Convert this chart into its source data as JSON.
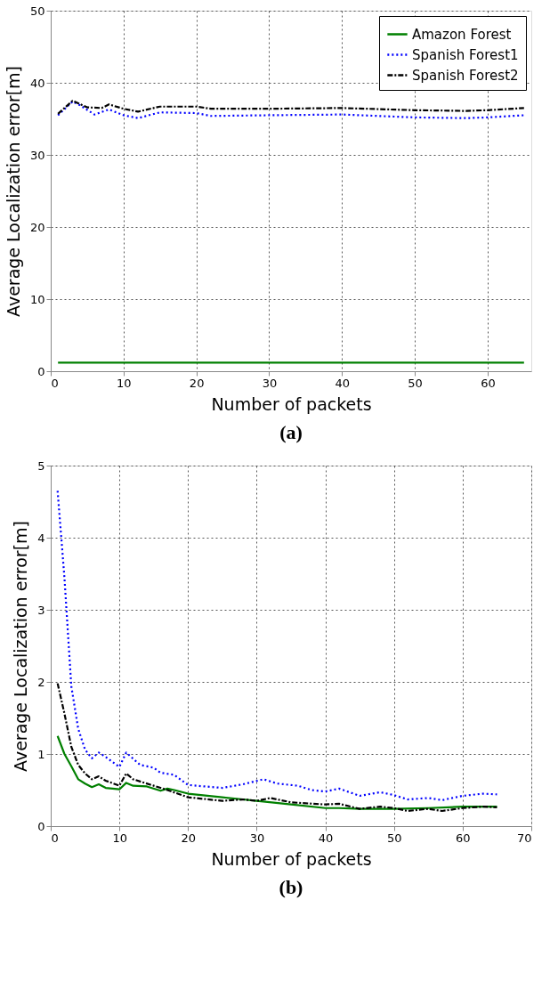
{
  "chart_data": [
    {
      "type": "line",
      "xlabel": "Number of packets",
      "ylabel": "Average Localization error[m]",
      "annotations": [
        "(a)"
      ],
      "xlim": [
        0,
        66
      ],
      "xticks": [
        0,
        10,
        20,
        30,
        40,
        50,
        60
      ],
      "ylim": [
        0,
        50
      ],
      "yticks": [
        0,
        10,
        20,
        30,
        40,
        50
      ],
      "grid": true,
      "legend": "top right",
      "marker": "none",
      "series": [
        {
          "name": "Amazon Forest",
          "color": "#008000",
          "line_style": "solid",
          "x": [
            1,
            10,
            20,
            30,
            40,
            50,
            60,
            65
          ],
          "values": [
            1.2,
            1.2,
            1.2,
            1.2,
            1.2,
            1.2,
            1.2,
            1.2
          ]
        },
        {
          "name": "Spanish Forest1",
          "color": "#0000ff",
          "line_style": "dotted",
          "x": [
            1,
            3,
            4,
            6,
            8,
            10,
            12,
            15,
            20,
            22,
            30,
            40,
            50,
            57,
            60,
            65
          ],
          "values": [
            35.5,
            37.4,
            36.9,
            35.6,
            36.3,
            35.5,
            35.1,
            35.9,
            35.8,
            35.4,
            35.5,
            35.6,
            35.2,
            35.1,
            35.2,
            35.5
          ]
        },
        {
          "name": "Spanish Forest2",
          "color": "#000000",
          "line_style": "dashdot",
          "x": [
            1,
            3,
            5,
            7,
            8,
            10,
            12,
            15,
            20,
            22,
            30,
            40,
            50,
            57,
            60,
            65
          ],
          "values": [
            35.7,
            37.5,
            36.6,
            36.5,
            37.0,
            36.4,
            36.0,
            36.7,
            36.7,
            36.4,
            36.4,
            36.5,
            36.2,
            36.1,
            36.2,
            36.5
          ]
        }
      ]
    },
    {
      "type": "line",
      "xlabel": "Number of packets",
      "ylabel": "Average Localization error[m]",
      "annotations": [
        "(b)"
      ],
      "xlim": [
        0,
        70
      ],
      "xticks": [
        0,
        10,
        20,
        30,
        40,
        50,
        60,
        70
      ],
      "ylim": [
        0,
        5
      ],
      "yticks": [
        0,
        1,
        2,
        3,
        4,
        5
      ],
      "grid": true,
      "legend": "top right",
      "marker": "none",
      "series": [
        {
          "name": "Amazon Forest",
          "color": "#008000",
          "line_style": "solid",
          "x": [
            1,
            2,
            3,
            4,
            5,
            6,
            7,
            8,
            9,
            10,
            11,
            12,
            14,
            16,
            17,
            18,
            20,
            25,
            28,
            30,
            35,
            40,
            42,
            45,
            50,
            55,
            60,
            65
          ],
          "values": [
            1.25,
            1.0,
            0.83,
            0.65,
            0.59,
            0.54,
            0.58,
            0.53,
            0.52,
            0.51,
            0.6,
            0.56,
            0.55,
            0.49,
            0.52,
            0.5,
            0.45,
            0.4,
            0.37,
            0.35,
            0.3,
            0.25,
            0.25,
            0.24,
            0.24,
            0.25,
            0.27,
            0.27
          ]
        },
        {
          "name": "Spanish Forest1",
          "color": "#0000ff",
          "line_style": "dotted",
          "x": [
            1,
            2,
            3,
            4,
            5,
            6,
            7,
            8,
            10,
            11,
            13,
            15,
            16,
            18,
            20,
            25,
            28,
            31,
            33,
            36,
            38,
            40,
            42,
            45,
            48,
            50,
            52,
            55,
            57,
            60,
            63,
            65
          ],
          "values": [
            4.65,
            3.44,
            1.94,
            1.35,
            1.06,
            0.94,
            1.02,
            0.96,
            0.82,
            1.02,
            0.85,
            0.81,
            0.74,
            0.71,
            0.57,
            0.53,
            0.58,
            0.65,
            0.59,
            0.56,
            0.5,
            0.48,
            0.52,
            0.42,
            0.47,
            0.43,
            0.37,
            0.39,
            0.36,
            0.42,
            0.45,
            0.44
          ]
        },
        {
          "name": "Spanish Forest2",
          "color": "#000000",
          "line_style": "dashdot",
          "x": [
            1,
            2,
            3,
            4,
            5,
            6,
            7,
            8,
            10,
            11,
            12,
            15,
            17,
            20,
            25,
            28,
            30,
            32,
            35,
            40,
            42,
            45,
            48,
            50,
            52,
            55,
            57,
            60,
            63,
            65
          ],
          "values": [
            1.98,
            1.56,
            1.1,
            0.85,
            0.73,
            0.65,
            0.69,
            0.63,
            0.56,
            0.73,
            0.65,
            0.56,
            0.5,
            0.4,
            0.35,
            0.37,
            0.35,
            0.39,
            0.33,
            0.3,
            0.31,
            0.24,
            0.27,
            0.25,
            0.21,
            0.24,
            0.21,
            0.25,
            0.27,
            0.26
          ]
        }
      ]
    }
  ]
}
